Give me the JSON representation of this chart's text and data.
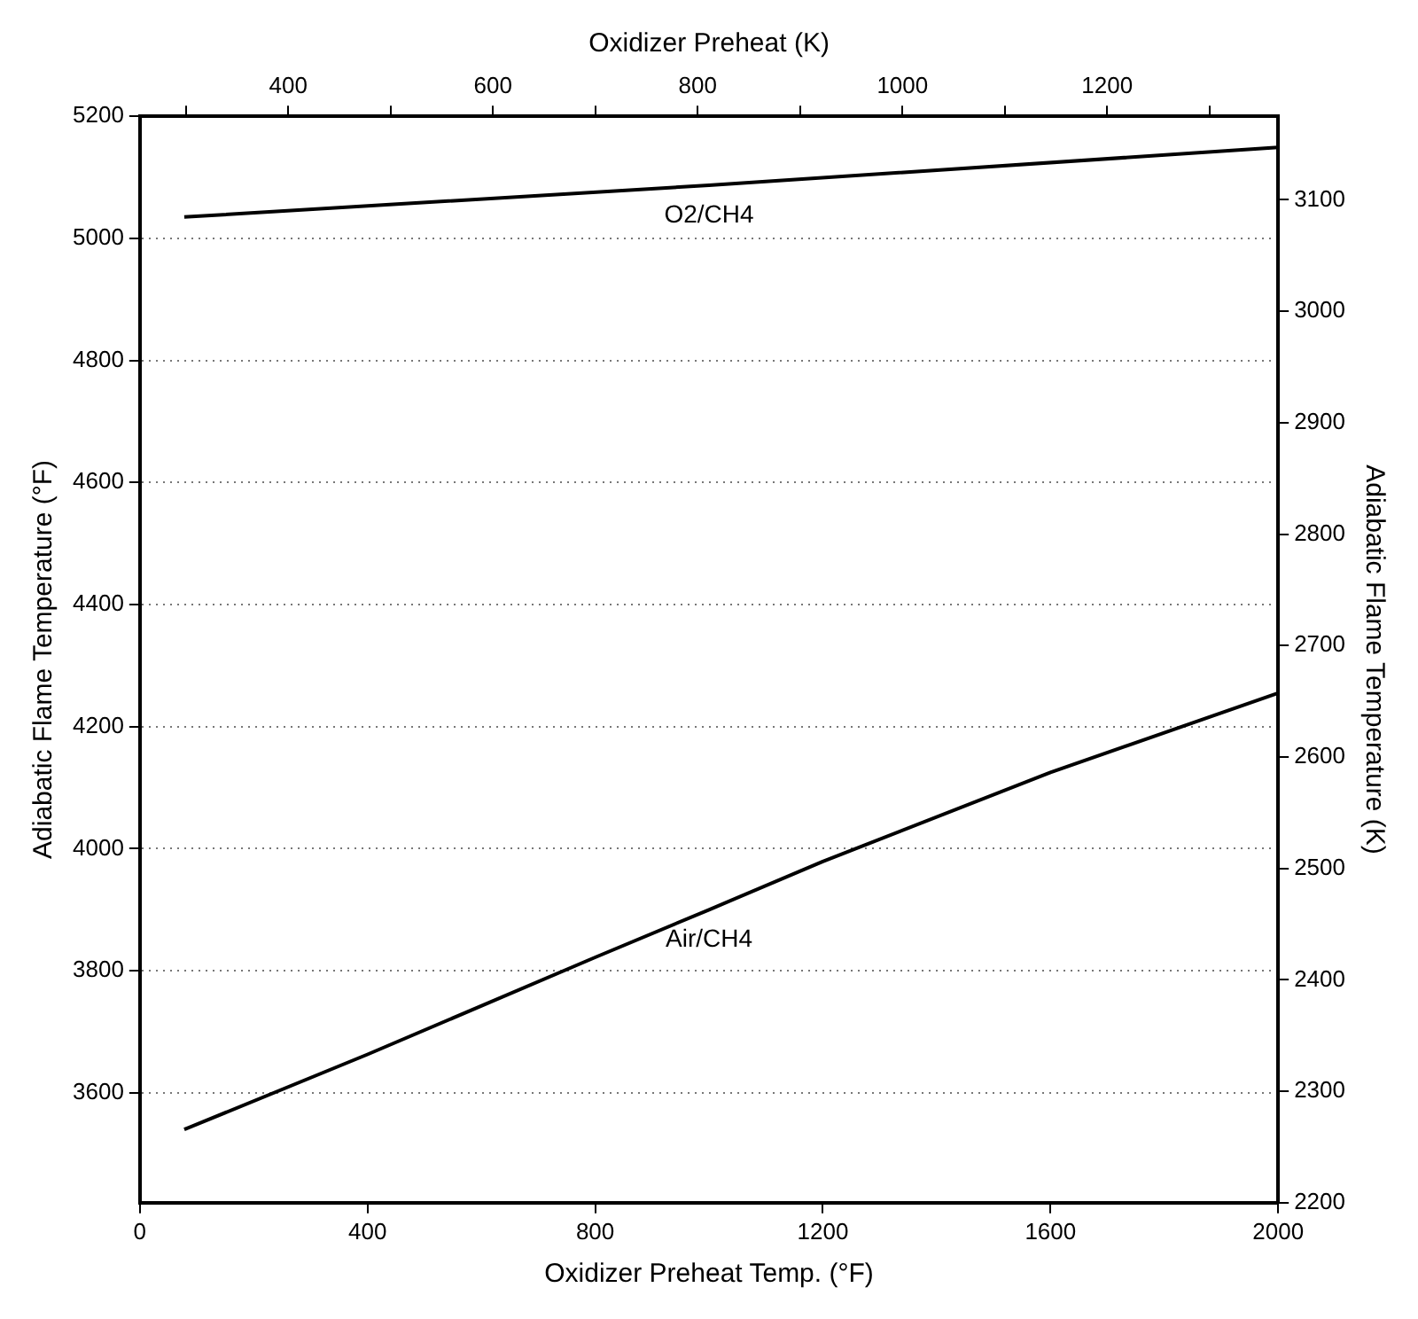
{
  "chart_data": {
    "type": "line",
    "xlabel": "Oxidizer Preheat Temp. (°F)",
    "ylabel": "Adiabatic Flame Temperature (°F)",
    "y2label": "Adiabatic Flame Temperature (K)",
    "x2label": "Oxidizer Preheat (K)",
    "xlim": [
      0,
      2000
    ],
    "xticks": [
      0,
      400,
      800,
      1200,
      1600,
      2000
    ],
    "ylim": [
      3420,
      5200
    ],
    "yticks": [
      3600,
      3800,
      4000,
      4200,
      4400,
      4600,
      4800,
      5000,
      5200
    ],
    "y2lim": [
      2200,
      3175
    ],
    "y2ticks": [
      2200,
      2300,
      2400,
      2500,
      2600,
      2700,
      2800,
      2900,
      3000,
      3100
    ],
    "x2lim": [
      255,
      1367
    ],
    "x2ticks": [
      {
        "value": 300,
        "label": null
      },
      400,
      {
        "value": 500,
        "label": null
      },
      600,
      {
        "value": 700,
        "label": null
      },
      800,
      {
        "value": 900,
        "label": null
      },
      1000,
      {
        "value": 1100,
        "label": null
      },
      1200,
      {
        "value": 1300,
        "label": null
      }
    ],
    "grid": "y",
    "legend": false,
    "marker": "none",
    "line_style": "solid",
    "series": [
      {
        "name": "O2/CH4",
        "color": "#000000",
        "x": [
          78,
          1000,
          2000
        ],
        "values": [
          5035,
          5087,
          5149
        ]
      },
      {
        "name": "Air/CH4",
        "color": "#000000",
        "x": [
          78,
          400,
          800,
          1000,
          1200,
          1600,
          2000
        ],
        "values": [
          3540,
          3663,
          3822,
          3900,
          3979,
          4125,
          4255
        ]
      }
    ]
  }
}
